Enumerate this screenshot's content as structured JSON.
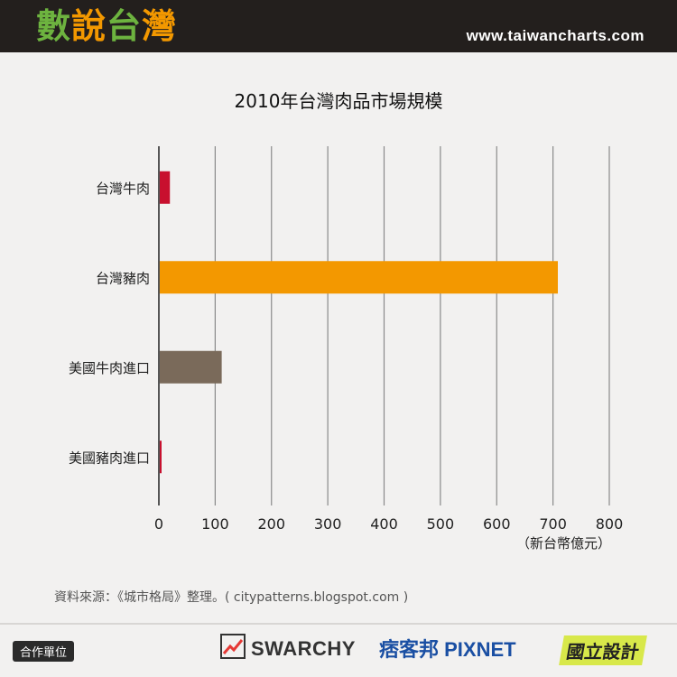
{
  "header": {
    "brand": [
      {
        "text": "數",
        "color": "#6db33f"
      },
      {
        "text": "說",
        "color": "#f39800"
      },
      {
        "text": "台",
        "color": "#6db33f"
      },
      {
        "text": "灣",
        "color": "#f39800"
      }
    ],
    "site": "www.taiwancharts.com",
    "bar_color": "#231f1d"
  },
  "chart_data": {
    "type": "bar",
    "orientation": "horizontal",
    "title": "2010年台灣肉品市場規模",
    "categories": [
      "台灣牛肉",
      "台灣豬肉",
      "美國牛肉進口",
      "美國豬肉進口"
    ],
    "values": [
      18,
      707,
      110,
      3
    ],
    "colors": [
      "#c8102e",
      "#f39800",
      "#7a6a5a",
      "#c8102e"
    ],
    "xlim": [
      0,
      800
    ],
    "xticks": [
      "0",
      "100",
      "200",
      "300",
      "400",
      "500",
      "600",
      "700",
      "800"
    ],
    "xlabel": "（新台幣億元）",
    "grid": true
  },
  "footer": {
    "source": "資料來源：《城市格局》整理。( citypatterns.blogspot.com )",
    "partner_label": "合作單位",
    "partners": [
      "SWARCHY",
      "痞客邦 PIXNET",
      "國立設計"
    ]
  }
}
